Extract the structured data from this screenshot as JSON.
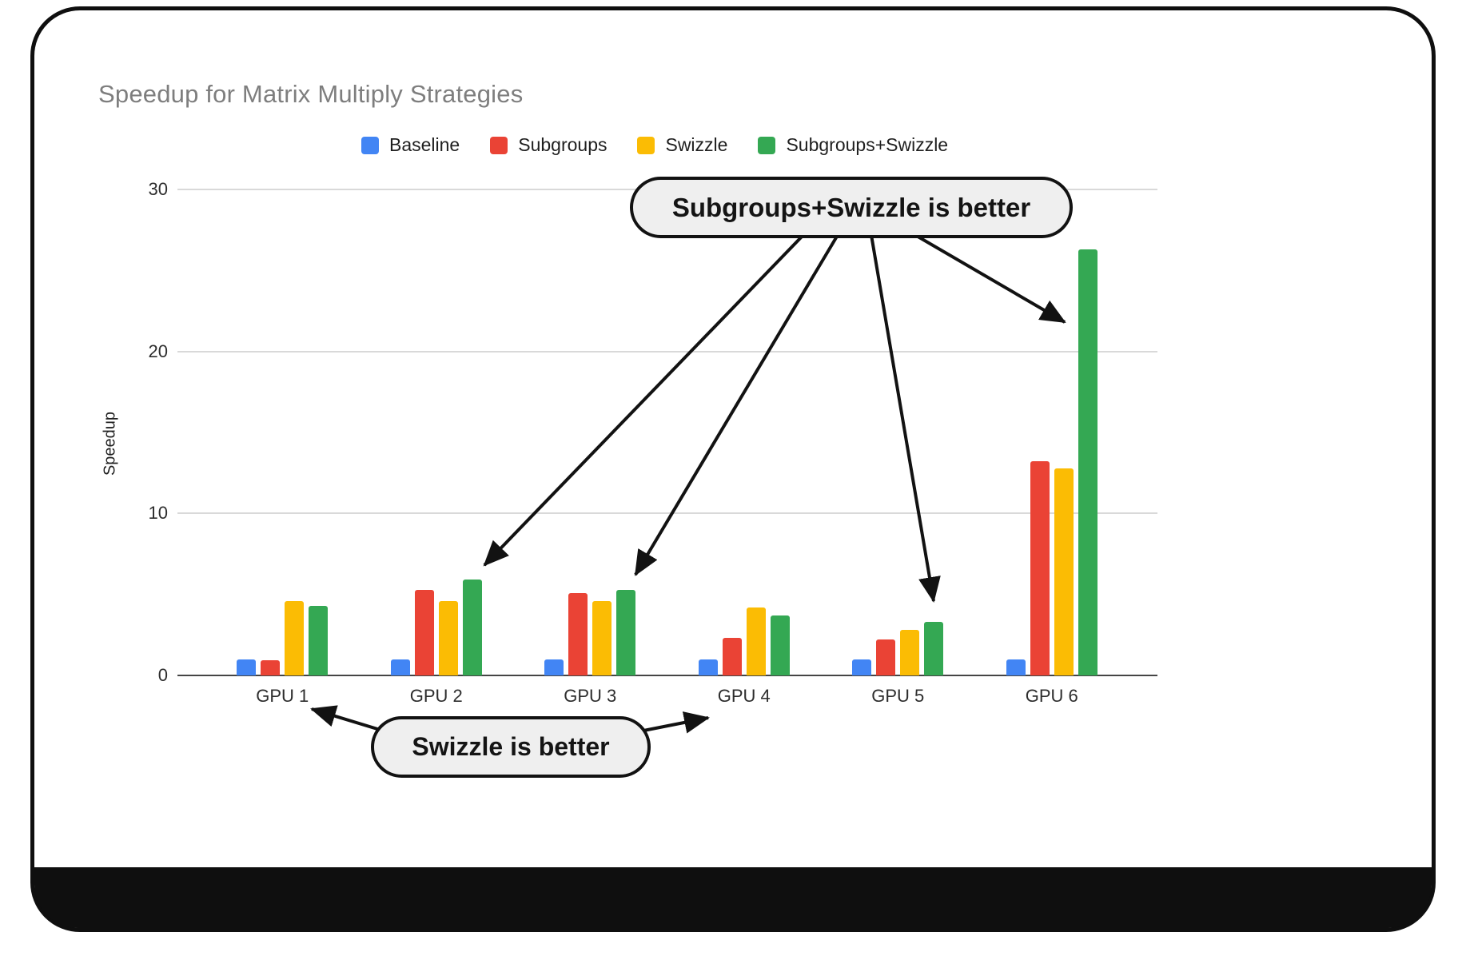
{
  "chart_data": {
    "type": "bar",
    "title": "Speedup for Matrix Multiply Strategies",
    "ylabel": "Speedup",
    "xlabel": "",
    "categories": [
      "GPU 1",
      "GPU 2",
      "GPU 3",
      "GPU 4",
      "GPU 5",
      "GPU 6"
    ],
    "series": [
      {
        "name": "Baseline",
        "color": "#4285F4",
        "values": [
          1.0,
          1.0,
          1.0,
          1.0,
          1.0,
          1.0
        ]
      },
      {
        "name": "Subgroups",
        "color": "#EA4335",
        "values": [
          0.95,
          5.3,
          5.1,
          2.3,
          2.2,
          13.2
        ]
      },
      {
        "name": "Swizzle",
        "color": "#FBBC04",
        "values": [
          4.6,
          4.6,
          4.6,
          4.2,
          2.8,
          12.8
        ]
      },
      {
        "name": "Subgroups+Swizzle",
        "color": "#34A853",
        "values": [
          4.3,
          5.9,
          5.3,
          3.7,
          3.3,
          26.3
        ]
      }
    ],
    "ylim": [
      0,
      30
    ],
    "yticks": [
      0,
      10,
      20,
      30
    ],
    "grid": true,
    "legend_position": "top"
  },
  "annotations": [
    {
      "text": "Subgroups+Swizzle is better",
      "targets": [
        "GPU 2 Subgroups+Swizzle bar",
        "GPU 3 Subgroups+Swizzle bar",
        "GPU 5 Subgroups+Swizzle bar",
        "GPU 6 Subgroups+Swizzle bar"
      ]
    },
    {
      "text": "Swizzle is better",
      "targets": [
        "GPU 1",
        "GPU 4"
      ]
    }
  ]
}
